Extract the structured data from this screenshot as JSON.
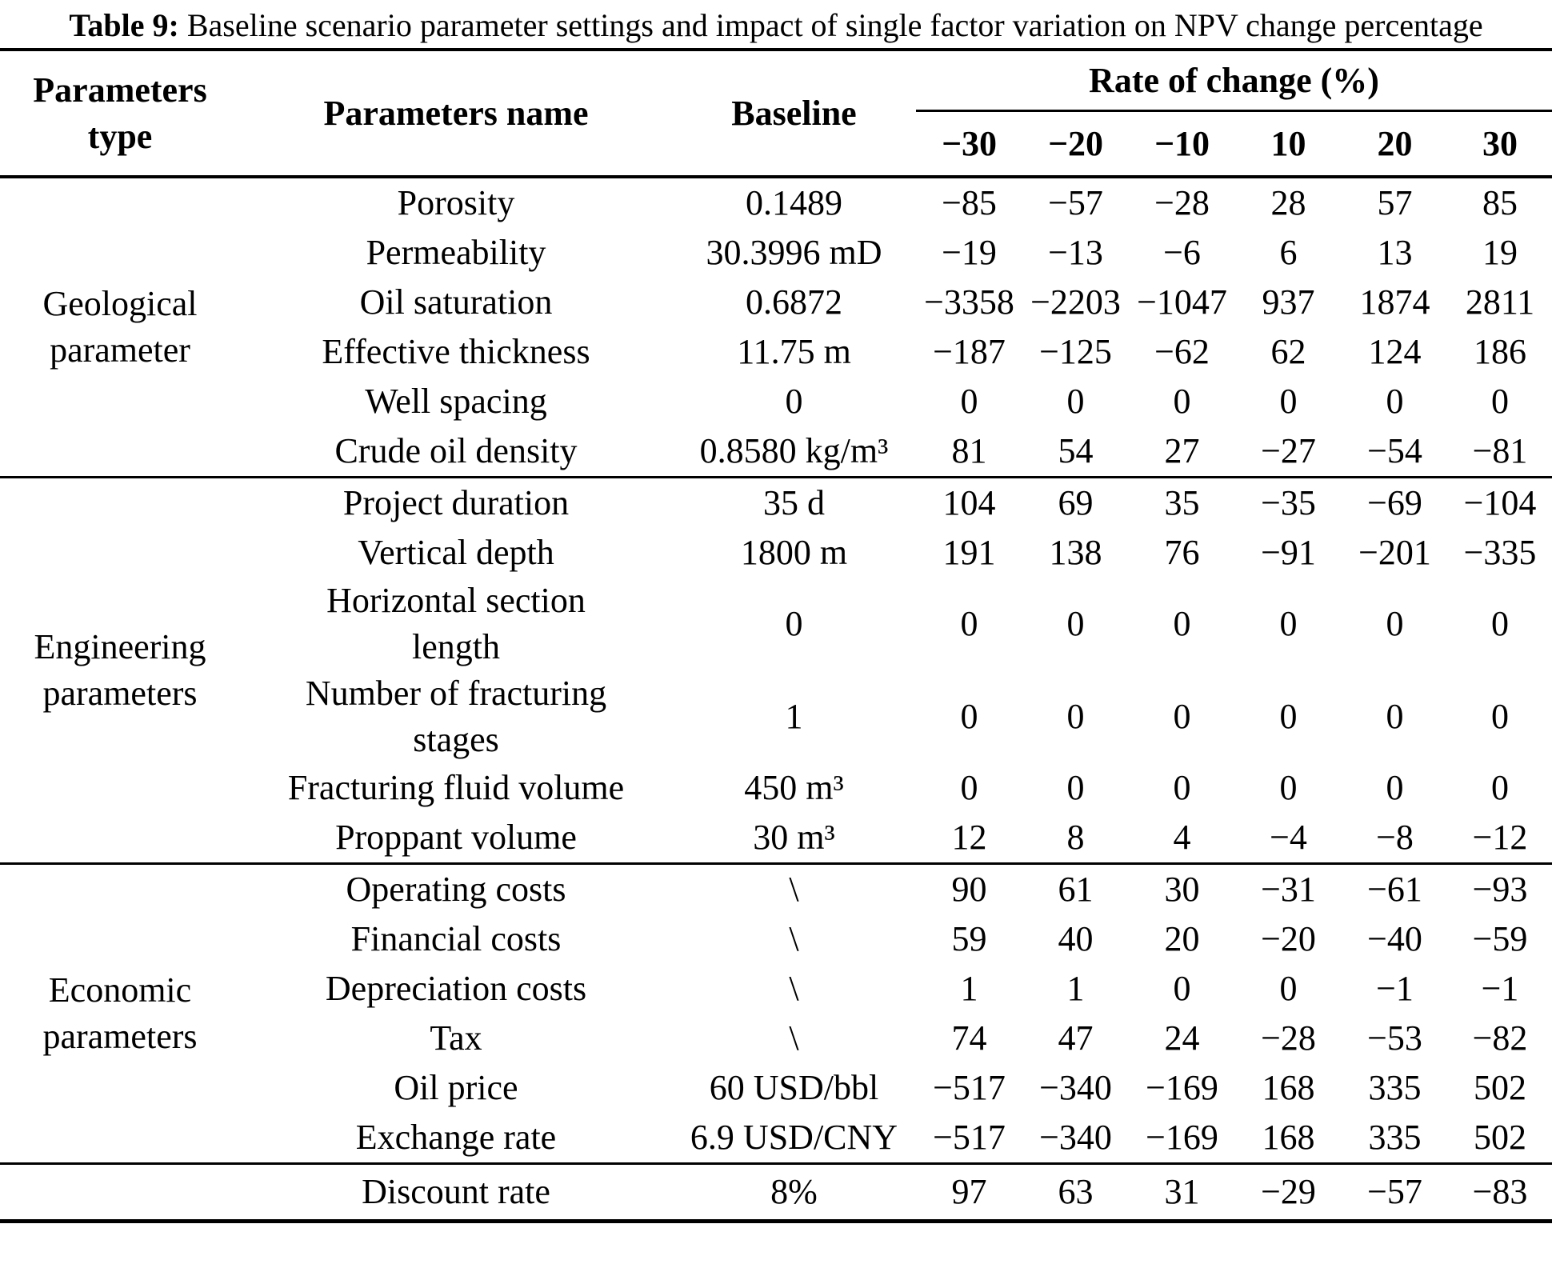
{
  "colors": {
    "text": "#000000",
    "background": "#ffffff"
  },
  "title": {
    "prefix": "Table 9:",
    "rest": "Baseline scenario parameter settings and impact of single factor variation on NPV change percentage"
  },
  "table": {
    "headers": {
      "type": "Parameters type",
      "name": "Parameters name",
      "baseline": "Baseline",
      "rate_group": "Rate of change (%)",
      "rates": [
        "−30",
        "−20",
        "−10",
        "10",
        "20",
        "30"
      ]
    },
    "sections": [
      {
        "type_label": "Geological parameter",
        "rows": [
          {
            "name": "Porosity",
            "baseline": "0.1489",
            "values": [
              "−85",
              "−57",
              "−28",
              "28",
              "57",
              "85"
            ]
          },
          {
            "name": "Permeability",
            "baseline": "30.3996 mD",
            "values": [
              "−19",
              "−13",
              "−6",
              "6",
              "13",
              "19"
            ]
          },
          {
            "name": "Oil saturation",
            "baseline": "0.6872",
            "values": [
              "−3358",
              "−2203",
              "−1047",
              "937",
              "1874",
              "2811"
            ]
          },
          {
            "name": "Effective thickness",
            "baseline": "11.75 m",
            "values": [
              "−187",
              "−125",
              "−62",
              "62",
              "124",
              "186"
            ]
          },
          {
            "name": "Well spacing",
            "baseline": "0",
            "values": [
              "0",
              "0",
              "0",
              "0",
              "0",
              "0"
            ]
          },
          {
            "name": "Crude oil density",
            "baseline": "0.8580 kg/m³",
            "values": [
              "81",
              "54",
              "27",
              "−27",
              "−54",
              "−81"
            ]
          }
        ]
      },
      {
        "type_label": "Engineering parameters",
        "rows": [
          {
            "name": "Project duration",
            "baseline": "35 d",
            "values": [
              "104",
              "69",
              "35",
              "−35",
              "−69",
              "−104"
            ]
          },
          {
            "name": "Vertical depth",
            "baseline": "1800 m",
            "values": [
              "191",
              "138",
              "76",
              "−91",
              "−201",
              "−335"
            ]
          },
          {
            "name": "Horizontal section length",
            "baseline": "0",
            "values": [
              "0",
              "0",
              "0",
              "0",
              "0",
              "0"
            ]
          },
          {
            "name": "Number of fracturing stages",
            "baseline": "1",
            "values": [
              "0",
              "0",
              "0",
              "0",
              "0",
              "0"
            ]
          },
          {
            "name": "Fracturing fluid volume",
            "baseline": "450 m³",
            "values": [
              "0",
              "0",
              "0",
              "0",
              "0",
              "0"
            ]
          },
          {
            "name": "Proppant volume",
            "baseline": "30 m³",
            "values": [
              "12",
              "8",
              "4",
              "−4",
              "−8",
              "−12"
            ]
          }
        ]
      },
      {
        "type_label": "Economic parameters",
        "rows": [
          {
            "name": "Operating costs",
            "baseline": "\\",
            "values": [
              "90",
              "61",
              "30",
              "−31",
              "−61",
              "−93"
            ]
          },
          {
            "name": "Financial costs",
            "baseline": "\\",
            "values": [
              "59",
              "40",
              "20",
              "−20",
              "−40",
              "−59"
            ]
          },
          {
            "name": "Depreciation costs",
            "baseline": "\\",
            "values": [
              "1",
              "1",
              "0",
              "0",
              "−1",
              "−1"
            ]
          },
          {
            "name": "Tax",
            "baseline": "\\",
            "values": [
              "74",
              "47",
              "24",
              "−28",
              "−53",
              "−82"
            ]
          },
          {
            "name": "Oil price",
            "baseline": "60 USD/bbl",
            "values": [
              "−517",
              "−340",
              "−169",
              "168",
              "335",
              "502"
            ]
          },
          {
            "name": "Exchange rate",
            "baseline": "6.9 USD/CNY",
            "values": [
              "−517",
              "−340",
              "−169",
              "168",
              "335",
              "502"
            ]
          }
        ]
      },
      {
        "type_label": "",
        "rows": [
          {
            "name": "Discount rate",
            "baseline": "8%",
            "values": [
              "97",
              "63",
              "31",
              "−29",
              "−57",
              "−83"
            ]
          }
        ]
      }
    ]
  }
}
